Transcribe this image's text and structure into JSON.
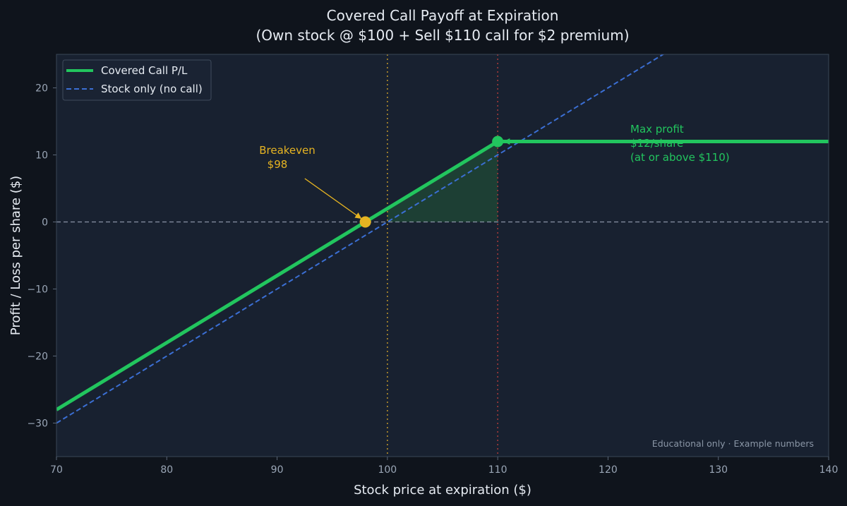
{
  "chart_data": {
    "type": "line",
    "title": "Covered Call Payoff at Expiration",
    "subtitle": "(Own stock @ $100 + Sell $110 call for $2 premium)",
    "xlabel": "Stock price at expiration ($)",
    "ylabel": "Profit / Loss per share ($)",
    "xlim": [
      70,
      140
    ],
    "ylim": [
      -35,
      25
    ],
    "xticks": [
      70,
      80,
      90,
      100,
      110,
      120,
      130,
      140
    ],
    "xtick_labels": [
      "70",
      "80",
      "90",
      "100",
      "110",
      "120",
      "130",
      "140"
    ],
    "yticks": [
      -30,
      -20,
      -10,
      0,
      10,
      20
    ],
    "ytick_labels": [
      "−30",
      "−20",
      "−10",
      "0",
      "10",
      "20"
    ],
    "grid": false,
    "legend_position": "top-left",
    "series": [
      {
        "name": "Covered Call P/L",
        "style": "solid",
        "color": "#22c55e",
        "x": [
          70,
          110,
          140
        ],
        "y": [
          -28,
          12,
          12
        ]
      },
      {
        "name": "Stock only (no call)",
        "style": "dashed",
        "color": "#3b6fd4",
        "x": [
          70,
          140
        ],
        "y": [
          -30,
          40
        ]
      }
    ],
    "reference_lines": [
      {
        "axis": "y",
        "value": 0,
        "color": "#8a94a6"
      },
      {
        "axis": "x",
        "value": 100,
        "color": "#b8902a"
      },
      {
        "axis": "x",
        "value": 110,
        "color": "#a33a3a"
      }
    ],
    "shaded_region": {
      "x": [
        100,
        110
      ],
      "y_low": 0,
      "color": "#1f4a36"
    },
    "markers": [
      {
        "x": 98,
        "y": 0,
        "color": "#e6b422"
      },
      {
        "x": 110,
        "y": 12,
        "color": "#22c55e"
      }
    ],
    "annotations": {
      "breakeven": {
        "lines": [
          "Breakeven",
          "$98"
        ],
        "text_x": 91,
        "text_y": 10,
        "arrow_from": [
          92,
          7
        ],
        "arrow_to": [
          98,
          0
        ]
      },
      "max_profit": {
        "lines": [
          "Max profit",
          "$12/share",
          "(at or above $110)"
        ],
        "text_x": 122,
        "text_y": 13,
        "arrow_from": [
          122,
          12
        ],
        "arrow_to": [
          110,
          12
        ]
      }
    },
    "footnote": "Educational only · Example numbers"
  },
  "colors": {
    "page_background": "#0f141c",
    "plot_background": "#182130",
    "axis_frame": "#3a4656",
    "covered_call": "#22c55e",
    "stock_only": "#3b6fd4",
    "breakeven": "#e6b422"
  }
}
